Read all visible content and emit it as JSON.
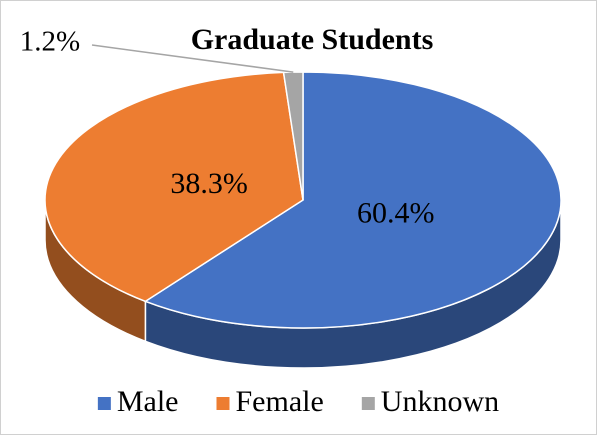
{
  "chart_data": {
    "type": "pie",
    "title": "Graduate Students",
    "categories": [
      "Male",
      "Female",
      "Unknown"
    ],
    "values": [
      60.4,
      38.3,
      1.2
    ],
    "value_labels": [
      "60.4%",
      "38.3%",
      "1.2%"
    ],
    "colors": [
      "#4472c4",
      "#ed7d31",
      "#a5a5a5"
    ],
    "legend": "bottom"
  }
}
